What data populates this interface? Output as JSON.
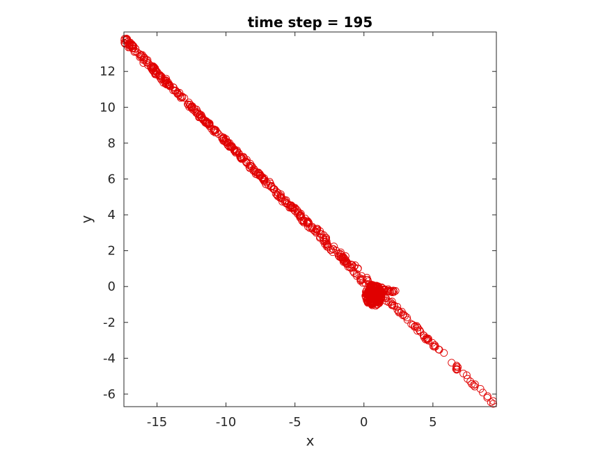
{
  "chart_data": {
    "type": "scatter",
    "title": "time step = 195",
    "xlabel": "x",
    "ylabel": "y",
    "xlim": [
      -17.4,
      9.6
    ],
    "ylim": [
      -6.7,
      14.2
    ],
    "xticks": [
      -15,
      -10,
      -5,
      0,
      5
    ],
    "xtick_labels": [
      "-15",
      "-10",
      "-5",
      "0",
      "5"
    ],
    "yticks": [
      -6,
      -4,
      -2,
      0,
      2,
      4,
      6,
      8,
      10,
      12
    ],
    "ytick_labels": [
      "-6",
      "-4",
      "-2",
      "0",
      "2",
      "4",
      "6",
      "8",
      "10",
      "12"
    ],
    "grid": false,
    "marker": "open-circle",
    "marker_color": "#e00000",
    "series": [
      {
        "branches": [
          {
            "from": [
              -17.3,
              13.8
            ],
            "to": [
              0.2,
              0.1
            ],
            "approx_points": 260
          },
          {
            "from": [
              -17.3,
              13.6
            ],
            "to": [
              9.5,
              -6.6
            ],
            "approx_points": 260
          },
          {
            "from": [
              0.3,
              0.1
            ],
            "to": [
              2.2,
              -0.3
            ],
            "approx_points": 40
          }
        ],
        "cluster": {
          "center": [
            0.7,
            -0.5
          ],
          "spread": [
            0.6,
            0.6
          ],
          "approx_points": 220
        }
      }
    ]
  }
}
